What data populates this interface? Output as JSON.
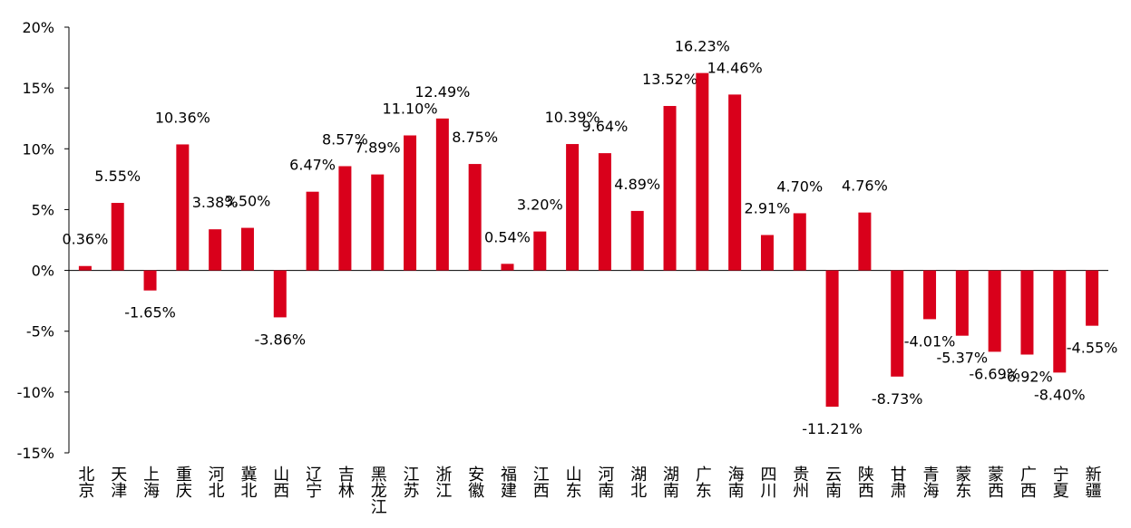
{
  "chart_data": {
    "type": "bar",
    "categories": [
      "北京",
      "天津",
      "上海",
      "重庆",
      "河北",
      "冀北",
      "山西",
      "辽宁",
      "吉林",
      "黑龙江",
      "江苏",
      "浙江",
      "安徽",
      "福建",
      "江西",
      "山东",
      "河南",
      "湖北",
      "湖南",
      "广东",
      "海南",
      "四川",
      "贵州",
      "云南",
      "陕西",
      "甘肃",
      "青海",
      "蒙东",
      "蒙西",
      "广西",
      "宁夏",
      "新疆"
    ],
    "values": [
      0.36,
      5.55,
      -1.65,
      10.36,
      3.38,
      3.5,
      -3.86,
      6.47,
      8.57,
      7.89,
      11.1,
      12.49,
      8.75,
      0.54,
      3.2,
      10.39,
      9.64,
      4.89,
      13.52,
      16.23,
      14.46,
      2.91,
      4.7,
      -11.21,
      4.76,
      -8.73,
      -4.01,
      -5.37,
      -6.69,
      -6.92,
      -8.4,
      -4.55
    ],
    "value_labels": [
      "0.36%",
      "5.55%",
      "-1.65%",
      "10.36%",
      "3.38%",
      "3.50%",
      "-3.86%",
      "6.47%",
      "8.57%",
      "7.89%",
      "11.10%",
      "12.49%",
      "8.75%",
      "0.54%",
      "3.20%",
      "10.39%",
      "9.64%",
      "4.89%",
      "13.52%",
      "16.23%",
      "14.46%",
      "2.91%",
      "4.70%",
      "-11.21%",
      "4.76%",
      "-8.73%",
      "-4.01%",
      "-5.37%",
      "-6.69%",
      "-6.92%",
      "-8.40%",
      "-4.55%"
    ],
    "color": "#d9001b",
    "ylim": [
      -15,
      20
    ],
    "yticks": [
      {
        "value": -15,
        "label": "-15%"
      },
      {
        "value": -10,
        "label": "-10%"
      },
      {
        "value": -5,
        "label": "-5%"
      },
      {
        "value": 0,
        "label": "0%"
      },
      {
        "value": 5,
        "label": "5%"
      },
      {
        "value": 10,
        "label": "10%"
      },
      {
        "value": 15,
        "label": "15%"
      },
      {
        "value": 20,
        "label": "20%"
      }
    ],
    "grid": false
  }
}
